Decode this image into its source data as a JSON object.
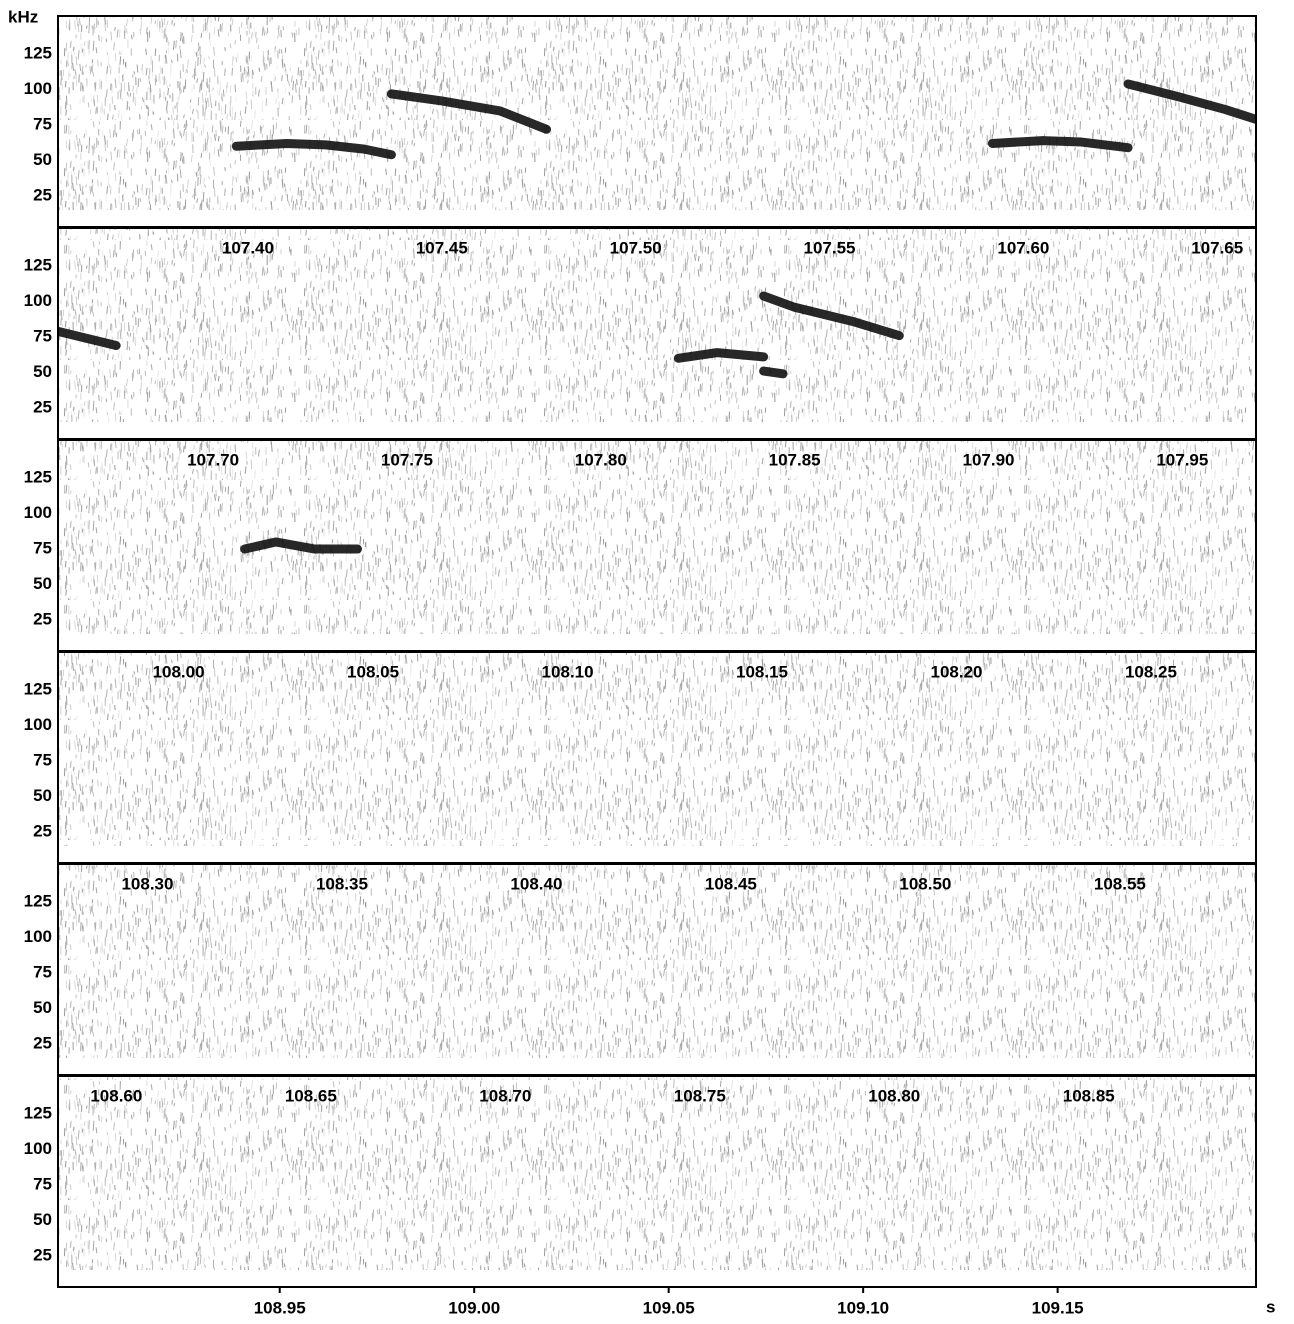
{
  "chart_data": {
    "type": "spectrogram",
    "ylabel": "kHz",
    "xlabel": "s",
    "ylim": [
      3,
      152
    ],
    "yticks": [
      25,
      50,
      75,
      100,
      125
    ],
    "rows": [
      {
        "xlim": [
          107.351,
          107.66
        ],
        "xticks": [
          {
            "value": 107.4,
            "label": "107.40"
          },
          {
            "value": 107.45,
            "label": "107.45"
          },
          {
            "value": 107.5,
            "label": "107.50"
          },
          {
            "value": 107.55,
            "label": "107.55"
          },
          {
            "value": 107.6,
            "label": "107.60"
          },
          {
            "value": 107.65,
            "label": "107.65"
          }
        ]
      },
      {
        "xlim": [
          107.66,
          107.969
        ],
        "xticks": [
          {
            "value": 107.7,
            "label": "107.70"
          },
          {
            "value": 107.75,
            "label": "107.75"
          },
          {
            "value": 107.8,
            "label": "107.80"
          },
          {
            "value": 107.85,
            "label": "107.85"
          },
          {
            "value": 107.9,
            "label": "107.90"
          },
          {
            "value": 107.95,
            "label": "107.95"
          }
        ]
      },
      {
        "xlim": [
          107.969,
          108.277
        ],
        "xticks": [
          {
            "value": 108.0,
            "label": "108.00"
          },
          {
            "value": 108.05,
            "label": "108.05"
          },
          {
            "value": 108.1,
            "label": "108.10"
          },
          {
            "value": 108.15,
            "label": "108.15"
          },
          {
            "value": 108.2,
            "label": "108.20"
          },
          {
            "value": 108.25,
            "label": "108.25"
          }
        ]
      },
      {
        "xlim": [
          108.277,
          108.585
        ],
        "xticks": [
          {
            "value": 108.3,
            "label": "108.30"
          },
          {
            "value": 108.35,
            "label": "108.35"
          },
          {
            "value": 108.4,
            "label": "108.40"
          },
          {
            "value": 108.45,
            "label": "108.45"
          },
          {
            "value": 108.5,
            "label": "108.50"
          },
          {
            "value": 108.55,
            "label": "108.55"
          }
        ]
      },
      {
        "xlim": [
          108.585,
          108.893
        ],
        "xticks": [
          {
            "value": 108.6,
            "label": "108.60"
          },
          {
            "value": 108.65,
            "label": "108.65"
          },
          {
            "value": 108.7,
            "label": "108.70"
          },
          {
            "value": 108.75,
            "label": "108.75"
          },
          {
            "value": 108.8,
            "label": "108.80"
          },
          {
            "value": 108.85,
            "label": "108.85"
          }
        ]
      },
      {
        "xlim": [
          108.893,
          109.201
        ],
        "xticks": [
          {
            "value": 108.95,
            "label": "108.95"
          },
          {
            "value": 109.0,
            "label": "109.00"
          },
          {
            "value": 109.05,
            "label": "109.05"
          },
          {
            "value": 109.1,
            "label": "109.10"
          },
          {
            "value": 109.15,
            "label": "109.15"
          }
        ]
      }
    ],
    "color": "#111111",
    "series": [
      {
        "x": [
          107.397,
          107.41,
          107.42,
          107.43,
          107.437
        ],
        "values": [
          60,
          62,
          61,
          58,
          54
        ]
      },
      {
        "x": [
          107.437,
          107.45,
          107.465,
          107.477
        ],
        "values": [
          97,
          92,
          85,
          72
        ]
      },
      {
        "x": [
          107.592,
          107.605,
          107.615,
          107.627
        ],
        "values": [
          62,
          64,
          63,
          59
        ]
      },
      {
        "x": [
          107.627,
          107.64,
          107.652,
          107.66,
          107.675
        ],
        "values": [
          104,
          95,
          86,
          79,
          69
        ]
      },
      {
        "x": [
          107.82,
          107.83,
          107.842
        ],
        "values": [
          60,
          64,
          61
        ]
      },
      {
        "x": [
          107.842,
          107.847
        ],
        "values": [
          51,
          49
        ]
      },
      {
        "x": [
          107.842,
          107.85,
          107.865,
          107.877
        ],
        "values": [
          104,
          96,
          86,
          76
        ]
      },
      {
        "x": [
          108.017,
          108.025,
          108.035,
          108.046
        ],
        "values": [
          75,
          80,
          75,
          75
        ]
      }
    ]
  }
}
